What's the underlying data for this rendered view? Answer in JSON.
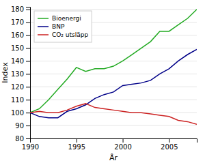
{
  "chart_data": {
    "type": "line",
    "xlabel": "År",
    "ylabel": "Index",
    "x": [
      1990,
      1991,
      1992,
      1993,
      1994,
      1995,
      1996,
      1997,
      1998,
      1999,
      2000,
      2001,
      2002,
      2003,
      2004,
      2005,
      2006,
      2007,
      2008
    ],
    "series": [
      {
        "name": "Bioenergi",
        "color": "#22aa22",
        "values": [
          100,
          103,
          110,
          118,
          126,
          135,
          132,
          134,
          134,
          136,
          140,
          145,
          150,
          155,
          163,
          163,
          168,
          173,
          180
        ]
      },
      {
        "name": "BNP",
        "color": "#000088",
        "values": [
          100,
          97,
          96,
          96,
          101,
          103,
          106,
          111,
          114,
          116,
          121,
          122,
          123,
          125,
          130,
          134,
          140,
          145,
          149
        ]
      },
      {
        "name": "CO₂ utsläpp",
        "color": "#cc2222",
        "values": [
          100,
          101,
          100,
          100,
          102,
          105,
          107,
          104,
          103,
          102,
          101,
          100,
          100,
          99,
          98,
          97,
          94,
          93,
          91
        ]
      }
    ],
    "xlim": [
      1990,
      2008
    ],
    "xticks": [
      1990,
      1995,
      2000,
      2005
    ],
    "ylim": [
      80,
      182
    ],
    "yticks": [
      80,
      90,
      100,
      110,
      120,
      130,
      140,
      150,
      160,
      170,
      180
    ],
    "grid": "y",
    "legend": "upper left"
  }
}
